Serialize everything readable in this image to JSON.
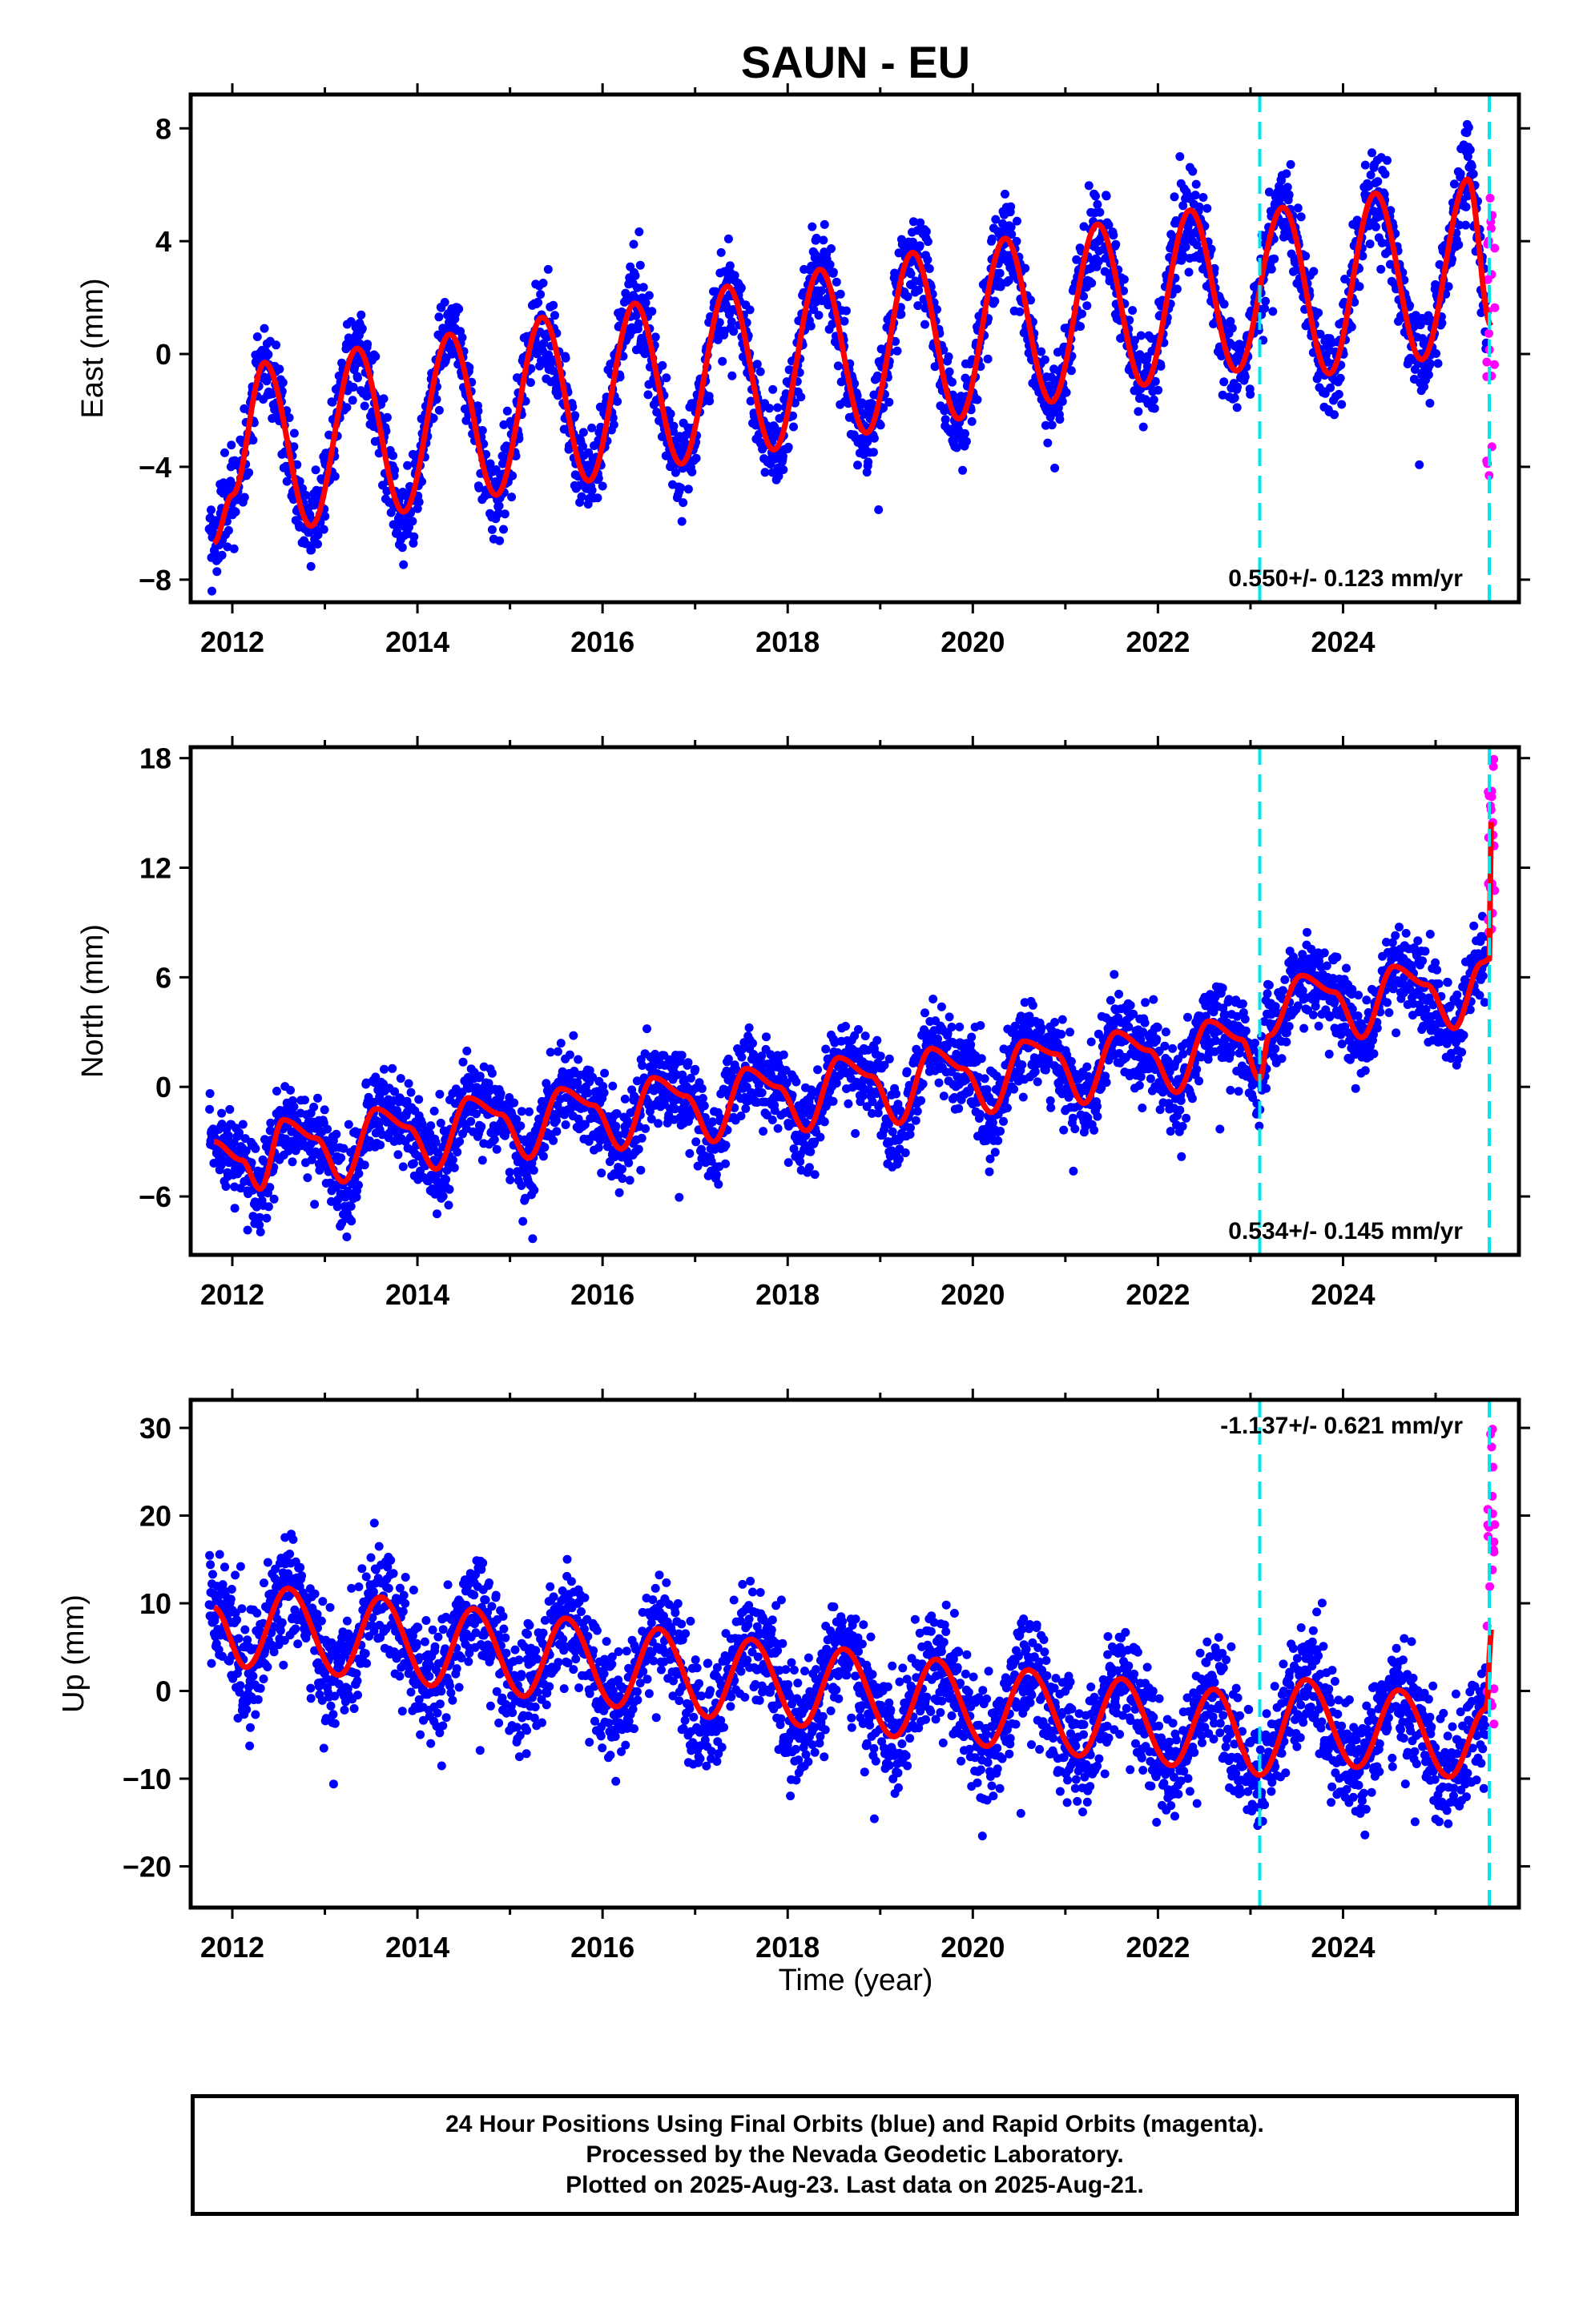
{
  "title": "SAUN - EU",
  "xlabel": "Time (year)",
  "footer": {
    "line1": "24 Hour Positions Using Final Orbits (blue) and Rapid Orbits (magenta).",
    "line2": "Processed by the Nevada Geodetic Laboratory.",
    "line3": "Plotted on 2025-Aug-23. Last data on 2025-Aug-21."
  },
  "colors": {
    "final_orbits": "#0000ff",
    "rapid_orbits": "#ff00ff",
    "model_fit": "#ff0000",
    "event_lines": "#00e5ee"
  },
  "chart_data": [
    {
      "type": "scatter",
      "panel": "east",
      "ylabel": "East (mm)",
      "xlim": [
        2011.55,
        2025.9
      ],
      "ylim": [
        -8.8,
        9.2
      ],
      "yticks": [
        -8,
        -4,
        0,
        4,
        8
      ],
      "xticks": [
        2012,
        2014,
        2016,
        2018,
        2020,
        2022,
        2024
      ],
      "rate_text": "0.550+/- 0.123 mm/yr",
      "rate_position": "bottom-right",
      "event_lines_x": [
        2023.1,
        2025.58
      ],
      "rapid_x_range": [
        2025.55,
        2025.64
      ],
      "rapid_y_range": [
        -4.7,
        6.4
      ],
      "series": [
        {
          "name": "Final Orbits (blue)",
          "color": "#0000ff",
          "data_start": 2011.75,
          "data_end": 2025.55
        },
        {
          "name": "Rapid Orbits (magenta)",
          "color": "#ff00ff"
        }
      ],
      "fit": {
        "color": "#ff0000",
        "x": [
          2011.8,
          2012.0,
          2012.35,
          2012.85,
          2013.35,
          2013.85,
          2014.35,
          2014.85,
          2015.35,
          2015.85,
          2016.35,
          2016.85,
          2017.35,
          2017.85,
          2018.35,
          2018.85,
          2019.35,
          2019.85,
          2020.35,
          2020.85,
          2021.35,
          2021.85,
          2022.35,
          2022.85,
          2023.35,
          2023.85,
          2024.35,
          2024.85,
          2025.35,
          2025.6
        ],
        "y": [
          -6.7,
          -5.0,
          -0.3,
          -6.1,
          0.2,
          -5.6,
          0.7,
          -5.0,
          1.3,
          -4.5,
          1.8,
          -3.9,
          2.4,
          -3.4,
          3.0,
          -2.8,
          3.6,
          -2.3,
          4.1,
          -1.7,
          4.6,
          -1.1,
          5.1,
          -0.6,
          5.2,
          -0.7,
          5.7,
          -0.2,
          6.2,
          1.0
        ]
      },
      "scatter_amplitude": 1.2
    },
    {
      "type": "scatter",
      "panel": "north",
      "ylabel": "North (mm)",
      "xlim": [
        2011.55,
        2025.9
      ],
      "ylim": [
        -9.2,
        18.6
      ],
      "yticks": [
        -6,
        0,
        6,
        12,
        18
      ],
      "xticks": [
        2012,
        2014,
        2016,
        2018,
        2020,
        2022,
        2024
      ],
      "rate_text": "0.534+/- 0.145 mm/yr",
      "rate_position": "bottom-right",
      "event_lines_x": [
        2023.1,
        2025.58
      ],
      "rapid_x_range": [
        2025.55,
        2025.64
      ],
      "rapid_y_range": [
        8.0,
        18.0
      ],
      "series": [
        {
          "name": "Final Orbits (blue)",
          "color": "#0000ff",
          "data_start": 2011.75,
          "data_end": 2025.55
        },
        {
          "name": "Rapid Orbits (magenta)",
          "color": "#ff00ff"
        }
      ],
      "fit": {
        "color": "#ff0000",
        "x": [
          2011.8,
          2012.1,
          2012.3,
          2012.55,
          2012.9,
          2013.2,
          2013.55,
          2013.9,
          2014.2,
          2014.55,
          2014.9,
          2015.2,
          2015.55,
          2015.9,
          2016.2,
          2016.55,
          2016.9,
          2017.2,
          2017.55,
          2017.9,
          2018.2,
          2018.55,
          2018.9,
          2019.2,
          2019.55,
          2019.9,
          2020.2,
          2020.55,
          2020.9,
          2021.2,
          2021.55,
          2021.9,
          2022.2,
          2022.55,
          2022.9,
          2023.1,
          2023.2,
          2023.55,
          2023.9,
          2024.2,
          2024.55,
          2024.9,
          2025.2,
          2025.5,
          2025.58,
          2025.6
        ],
        "y": [
          -3.0,
          -4.0,
          -5.6,
          -1.8,
          -2.8,
          -5.2,
          -1.2,
          -2.2,
          -4.5,
          -0.6,
          -1.5,
          -3.9,
          -0.1,
          -1.0,
          -3.4,
          0.5,
          -0.5,
          -3.0,
          1.0,
          0.0,
          -2.4,
          1.6,
          0.6,
          -2.0,
          2.1,
          1.0,
          -1.4,
          2.5,
          1.8,
          -0.9,
          3.0,
          2.0,
          -0.3,
          3.6,
          2.6,
          0.4,
          2.8,
          6.1,
          5.2,
          2.7,
          6.6,
          5.6,
          3.2,
          6.8,
          7.0,
          14.5
        ]
      },
      "scatter_amplitude": 1.8
    },
    {
      "type": "scatter",
      "panel": "up",
      "ylabel": "Up (mm)",
      "xlim": [
        2011.55,
        2025.9
      ],
      "ylim": [
        -24.7,
        33.2
      ],
      "yticks": [
        -20,
        -10,
        0,
        10,
        20,
        30
      ],
      "xticks": [
        2012,
        2014,
        2016,
        2018,
        2020,
        2022,
        2024
      ],
      "rate_text": "-1.137+/- 0.621 mm/yr",
      "rate_position": "top-right",
      "event_lines_x": [
        2023.1,
        2025.58
      ],
      "rapid_x_range": [
        2025.55,
        2025.64
      ],
      "rapid_y_range": [
        -5.0,
        30.0
      ],
      "series": [
        {
          "name": "Final Orbits (blue)",
          "color": "#0000ff",
          "data_start": 2011.75,
          "data_end": 2025.55
        },
        {
          "name": "Rapid Orbits (magenta)",
          "color": "#ff00ff"
        }
      ],
      "fit": {
        "color": "#ff0000",
        "x": [
          2011.8,
          2012.15,
          2012.6,
          2013.15,
          2013.6,
          2014.15,
          2014.6,
          2015.15,
          2015.6,
          2016.15,
          2016.6,
          2017.15,
          2017.6,
          2018.15,
          2018.6,
          2019.15,
          2019.6,
          2020.15,
          2020.6,
          2021.15,
          2021.6,
          2022.15,
          2022.6,
          2023.1,
          2023.6,
          2024.15,
          2024.6,
          2025.15,
          2025.55,
          2025.6
        ],
        "y": [
          9.5,
          2.7,
          11.7,
          1.8,
          10.7,
          0.6,
          9.4,
          -0.6,
          8.3,
          -1.8,
          7.1,
          -3.0,
          5.9,
          -4.0,
          4.8,
          -5.2,
          3.6,
          -6.3,
          2.4,
          -7.4,
          1.4,
          -8.5,
          0.2,
          -9.6,
          1.3,
          -8.7,
          0.1,
          -9.8,
          -2.0,
          7.0
        ]
      },
      "scatter_amplitude": 5.0
    }
  ]
}
